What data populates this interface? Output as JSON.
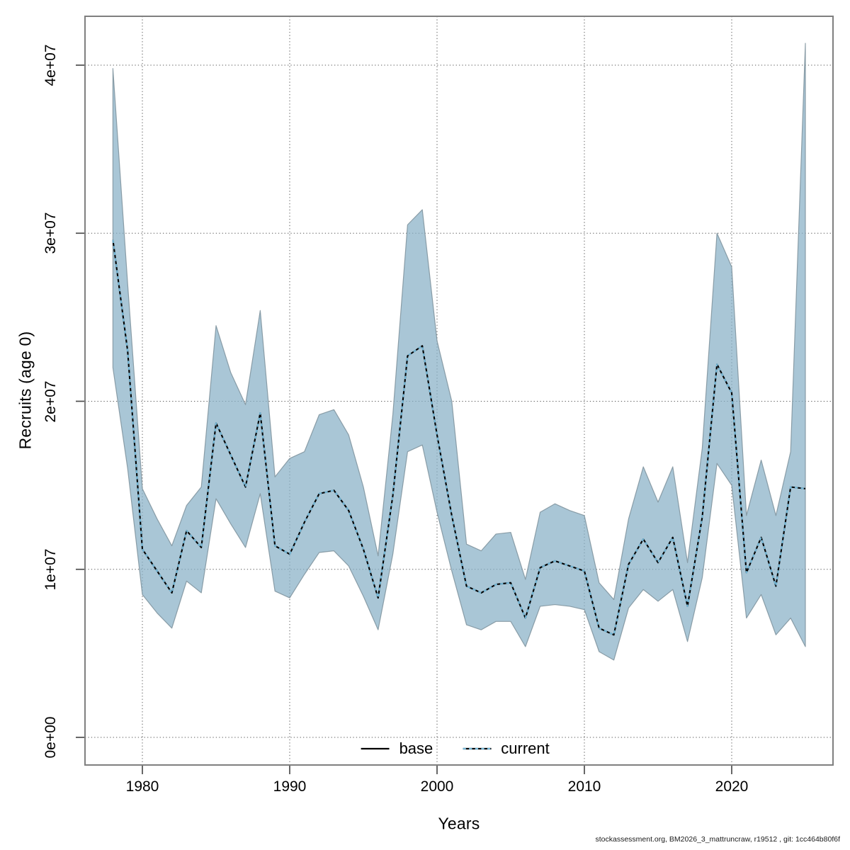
{
  "figure": {
    "background": "#ffffff",
    "box_color": "#7f7f7f",
    "grid_color": "#595959",
    "tick_color": "#4d4d4d",
    "band_fill": "#88b0c6",
    "band_edge": "#7d909b",
    "base_line_color": "#000000",
    "current_line_color": "#74b8d8"
  },
  "axes": {
    "y": {
      "title": "Recruits (age 0)",
      "ticks": [
        {
          "value": 0,
          "label": "0e+00"
        },
        {
          "value": 10000000,
          "label": "1e+07"
        },
        {
          "value": 20000000,
          "label": "2e+07"
        },
        {
          "value": 30000000,
          "label": "3e+07"
        },
        {
          "value": 40000000,
          "label": "4e+07"
        }
      ]
    },
    "x": {
      "title": "Years",
      "ticks": [
        {
          "value": 1980,
          "label": "1980"
        },
        {
          "value": 1990,
          "label": "1990"
        },
        {
          "value": 2000,
          "label": "2000"
        },
        {
          "value": 2010,
          "label": "2010"
        },
        {
          "value": 2020,
          "label": "2020"
        }
      ]
    }
  },
  "legend": {
    "position": "bottom-center",
    "items": [
      {
        "label": "base",
        "style": "solid",
        "color": "#000000"
      },
      {
        "label": "current",
        "style": "dotted",
        "color": "#74b8d8"
      }
    ]
  },
  "footer": "stockassessment.org, BM2026_3_mattruncraw, r19512 , git: 1cc464b80f6f",
  "chart_data": {
    "type": "line",
    "title": "",
    "xlabel": "Years",
    "ylabel": "Recruits (age 0)",
    "xlim": [
      1976.1,
      2026.9
    ],
    "ylim": [
      0,
      42900000
    ],
    "grid": "dotted",
    "legend_position": "bottom-center",
    "x": [
      1978,
      1979,
      1980,
      1981,
      1982,
      1983,
      1984,
      1985,
      1986,
      1987,
      1988,
      1989,
      1990,
      1991,
      1992,
      1993,
      1994,
      1995,
      1996,
      1997,
      1998,
      1999,
      2000,
      2001,
      2002,
      2003,
      2004,
      2005,
      2006,
      2007,
      2008,
      2009,
      2010,
      2011,
      2012,
      2013,
      2014,
      2015,
      2016,
      2017,
      2018,
      2019,
      2020,
      2021,
      2022,
      2023,
      2024,
      2025
    ],
    "series": [
      {
        "name": "current_median",
        "style": "dotted-over-solid-base",
        "values": [
          29600000,
          23000000,
          11200000,
          9900000,
          8600000,
          12300000,
          11300000,
          18700000,
          16800000,
          14900000,
          19300000,
          11400000,
          10900000,
          12800000,
          14500000,
          14700000,
          13500000,
          11200000,
          8300000,
          14400000,
          22700000,
          23300000,
          18000000,
          13200000,
          9000000,
          8600000,
          9100000,
          9200000,
          7100000,
          10100000,
          10500000,
          10200000,
          9900000,
          6500000,
          6100000,
          10300000,
          11800000,
          10400000,
          11900000,
          7800000,
          13100000,
          22200000,
          20500000,
          9800000,
          11900000,
          9000000,
          14900000,
          14800000
        ]
      },
      {
        "name": "ci_lower",
        "style": "band-edge",
        "values": [
          22000000,
          16000000,
          8500000,
          7400000,
          6500000,
          9300000,
          8600000,
          14200000,
          12700000,
          11300000,
          14500000,
          8700000,
          8300000,
          9700000,
          11000000,
          11100000,
          10200000,
          8400000,
          6400000,
          10900000,
          17000000,
          17400000,
          13400000,
          9900000,
          6700000,
          6400000,
          6900000,
          6900000,
          5400000,
          7800000,
          7900000,
          7800000,
          7600000,
          5100000,
          4600000,
          7700000,
          8800000,
          8100000,
          8800000,
          5700000,
          9500000,
          16300000,
          15000000,
          7100000,
          8500000,
          6100000,
          7100000,
          5400000
        ]
      },
      {
        "name": "ci_upper",
        "style": "band-edge",
        "values": [
          39800000,
          27000000,
          14800000,
          13000000,
          11400000,
          13800000,
          14900000,
          24500000,
          21700000,
          19800000,
          25400000,
          15500000,
          16600000,
          17000000,
          19200000,
          19500000,
          18000000,
          14900000,
          10800000,
          19200000,
          30500000,
          31400000,
          23600000,
          20000000,
          11500000,
          11100000,
          12100000,
          12200000,
          9400000,
          13400000,
          13900000,
          13500000,
          13200000,
          9200000,
          8200000,
          13000000,
          16100000,
          14000000,
          16100000,
          10400000,
          17200000,
          30000000,
          28000000,
          13200000,
          16500000,
          13200000,
          17000000,
          41300000
        ]
      }
    ]
  }
}
